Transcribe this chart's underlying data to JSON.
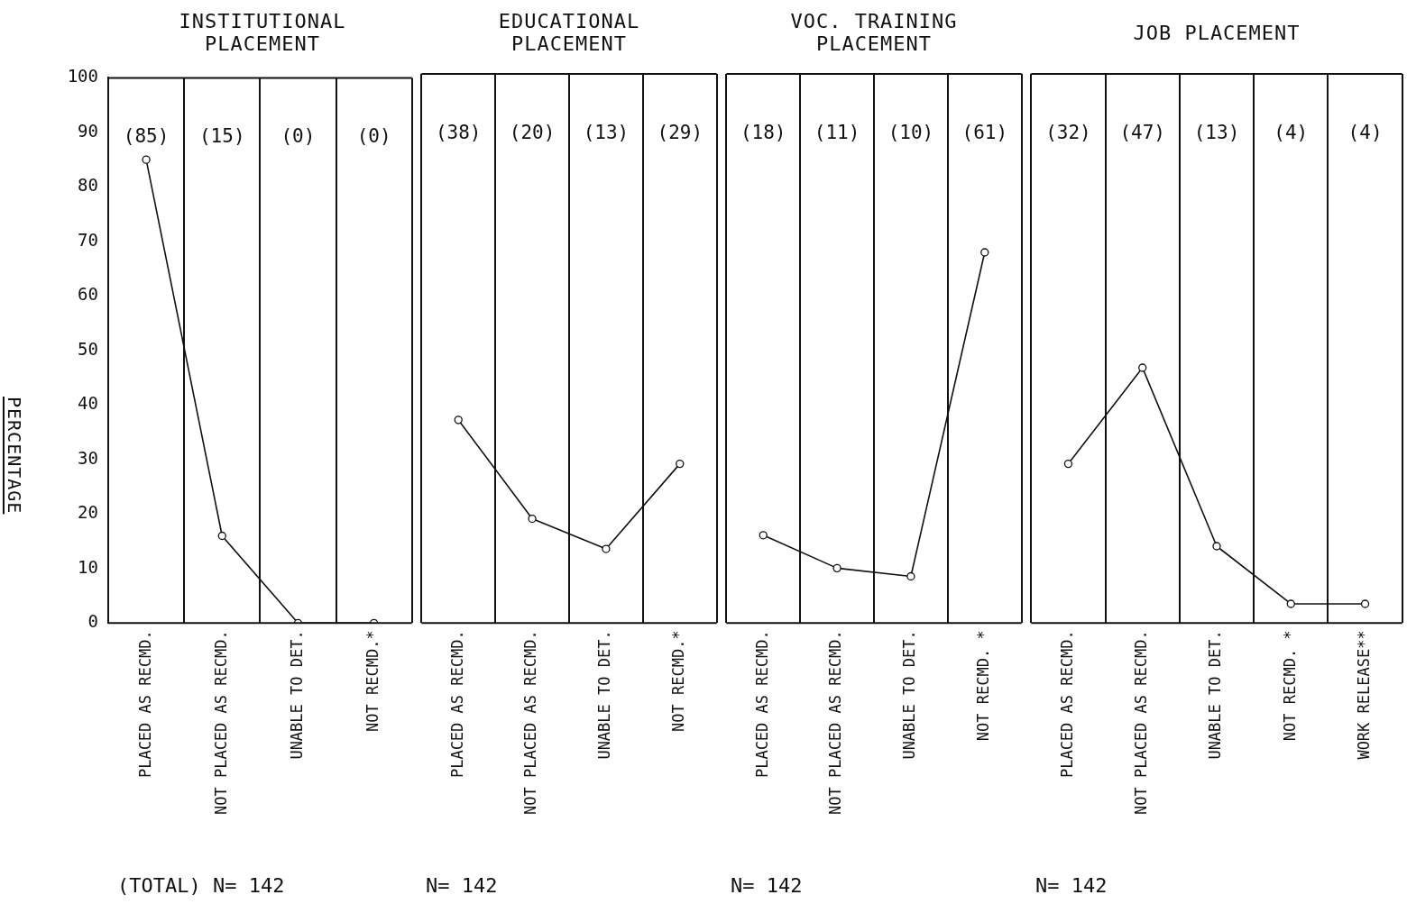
{
  "chart_data": [
    {
      "type": "line",
      "title": "INSTITUTIONAL PLACEMENT",
      "ylabel": "PERCENTAGE",
      "categories": [
        "PLACED AS RECMD.",
        "NOT PLACED AS RECMD.",
        "UNABLE TO DET.",
        "NOT RECMD.*"
      ],
      "values": [
        85,
        16,
        0,
        0
      ],
      "color": "#111111",
      "marker": "circle",
      "ylim": [
        0,
        100
      ],
      "yticks": [
        0,
        10,
        20,
        30,
        40,
        50,
        60,
        70,
        80,
        90,
        100
      ],
      "grid": "x",
      "legend": false,
      "annotations": [
        "(85)",
        "(15)",
        "(0)",
        "(0)",
        "(TOTAL) N= 142"
      ]
    },
    {
      "type": "line",
      "title": "EDUCATIONAL PLACEMENT",
      "categories": [
        "PLACED AS RECMD.",
        "NOT PLACED AS RECMD.",
        "UNABLE TO DET.",
        "NOT RECMD.*"
      ],
      "values": [
        37,
        19,
        13.5,
        29
      ],
      "color": "#111111",
      "marker": "circle",
      "ylim": [
        0,
        100
      ],
      "grid": "x",
      "legend": false,
      "tick_labels": "x",
      "annotations": [
        "(38)",
        "(20)",
        "(13)",
        "(29)",
        "N= 142"
      ]
    },
    {
      "type": "line",
      "title": "VOC. TRAINING PLACEMENT",
      "categories": [
        "PLACED AS RECMD.",
        "NOT PLACED AS RECMD.",
        "UNABLE TO DET.",
        "NOT RECMD. *"
      ],
      "values": [
        16,
        10,
        8.5,
        67.5
      ],
      "color": "#111111",
      "marker": "circle",
      "ylim": [
        0,
        100
      ],
      "grid": "x",
      "legend": false,
      "tick_labels": "x",
      "annotations": [
        "(18)",
        "(11)",
        "(10)",
        "(61)",
        "N= 142"
      ]
    },
    {
      "type": "line",
      "title": "JOB PLACEMENT",
      "categories": [
        "PLACED AS RECMD.",
        "NOT PLACED AS RECMD.",
        "UNABLE TO DET.",
        "NOT RECMD. *",
        "WORK RELEASE**"
      ],
      "values": [
        29,
        46.5,
        14,
        3.5,
        3.5
      ],
      "color": "#111111",
      "marker": "circle",
      "ylim": [
        0,
        100
      ],
      "grid": "x",
      "legend": false,
      "tick_labels": "x",
      "annotations": [
        "(32)",
        "(47)",
        "(13)",
        "(4)",
        "(4)",
        "N= 142"
      ]
    }
  ]
}
